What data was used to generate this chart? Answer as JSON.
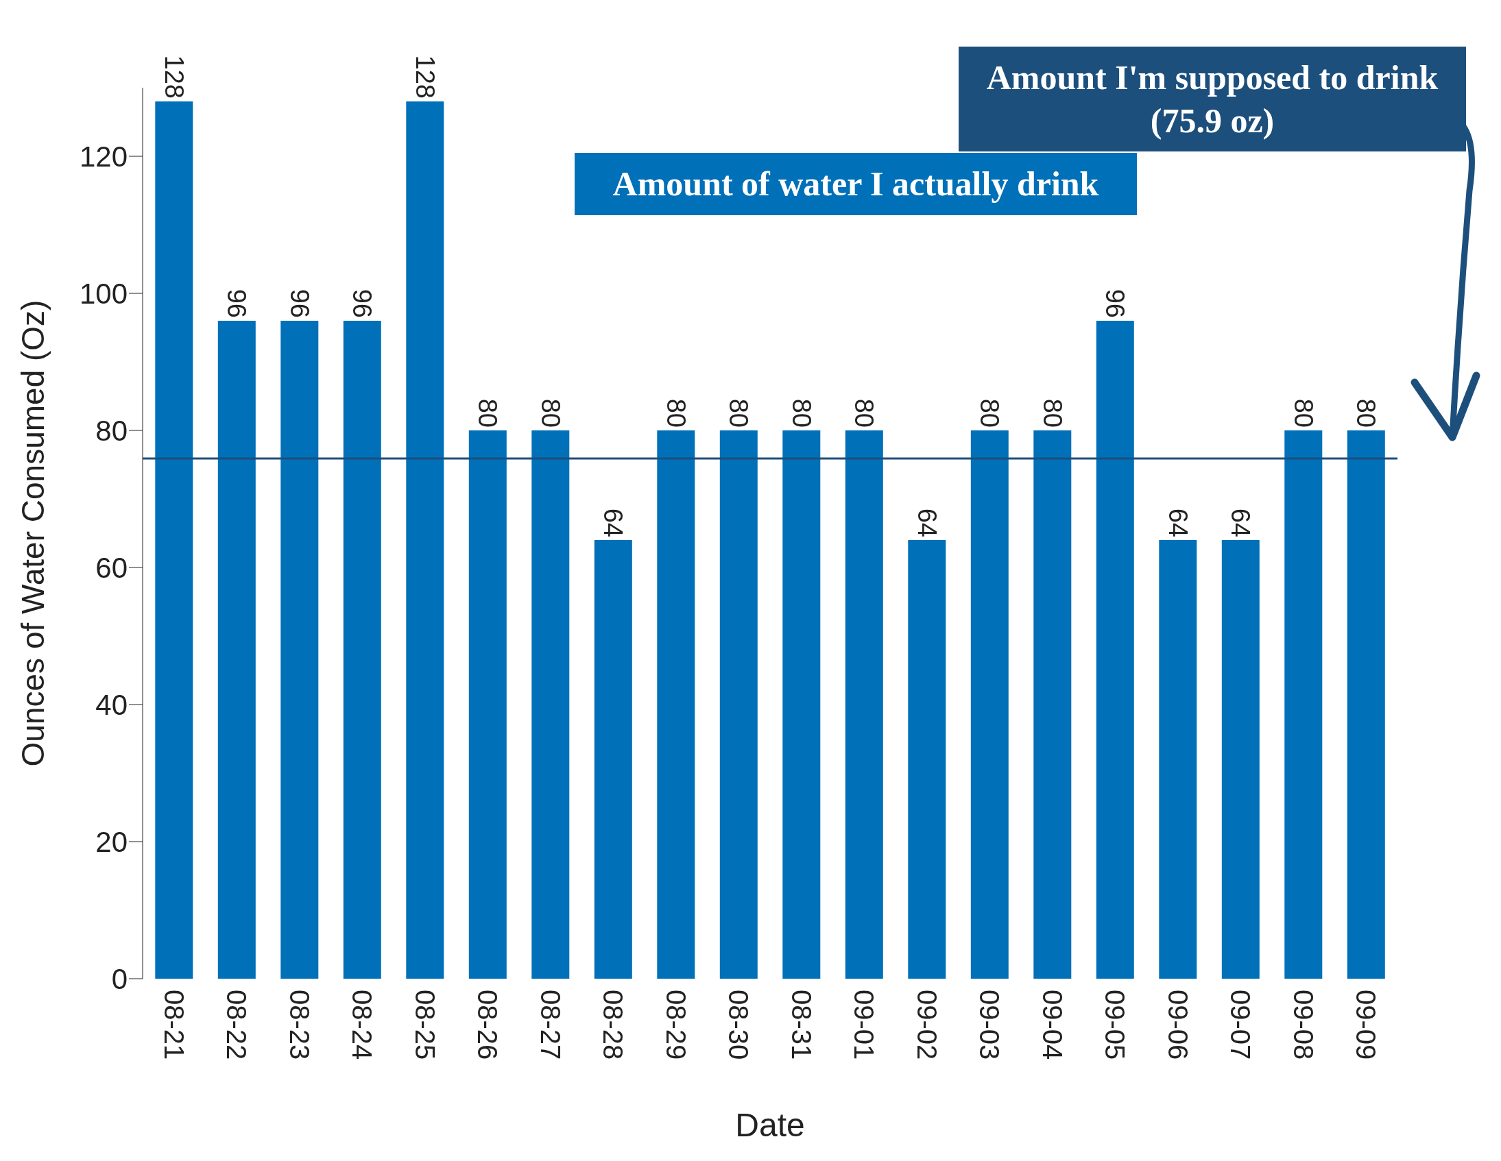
{
  "chart_data": {
    "type": "bar",
    "xlabel": "Date",
    "ylabel": "Ounces of Water Consumed (Oz)",
    "categories": [
      "08-21",
      "08-22",
      "08-23",
      "08-24",
      "08-25",
      "08-26",
      "08-27",
      "08-28",
      "08-29",
      "08-30",
      "08-31",
      "09-01",
      "09-02",
      "09-03",
      "09-04",
      "09-05",
      "09-06",
      "09-07",
      "09-08",
      "09-09"
    ],
    "values": [
      128,
      96,
      96,
      96,
      128,
      80,
      80,
      64,
      80,
      80,
      80,
      80,
      64,
      80,
      80,
      96,
      64,
      64,
      80,
      80
    ],
    "color": "#0070b8",
    "ylim": [
      0,
      130
    ],
    "yticks": [
      0,
      20,
      40,
      60,
      80,
      100,
      120
    ],
    "data_labels": true,
    "ref_lines": [
      {
        "axis": "y",
        "value": 75.9,
        "color": "#1d4f7c"
      }
    ],
    "annotations": [
      "Amount of water I actually drink",
      "Amount I'm supposed to drink (75.9 oz)"
    ]
  }
}
